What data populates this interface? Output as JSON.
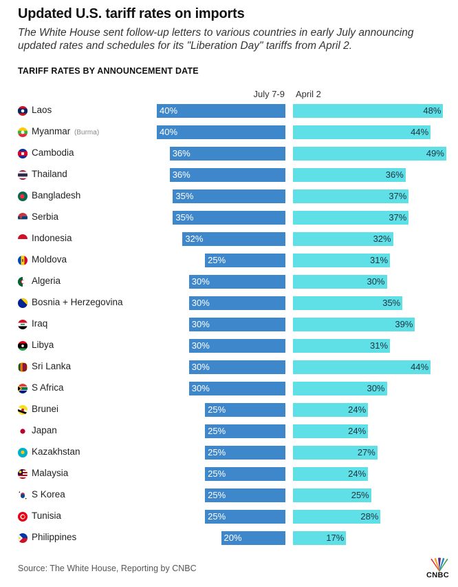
{
  "header": {
    "title": "Updated U.S. tariff rates on imports",
    "subtitle": "The White House sent follow-up letters to various countries in early July announcing updated rates and schedules for its \"Liberation Day\" tariffs from April 2.",
    "section": "TARIFF RATES BY ANNOUNCEMENT DATE"
  },
  "colors": {
    "july": "#3f87cb",
    "april": "#5fdfe6"
  },
  "chart_data": {
    "type": "bar",
    "title": "TARIFF RATES BY ANNOUNCEMENT DATE",
    "series": [
      {
        "name": "July 7-9",
        "values": [
          40,
          40,
          36,
          36,
          35,
          35,
          32,
          25,
          30,
          30,
          30,
          30,
          30,
          30,
          25,
          25,
          25,
          25,
          25,
          25,
          20
        ]
      },
      {
        "name": "April 2",
        "values": [
          48,
          44,
          49,
          36,
          37,
          37,
          32,
          31,
          30,
          35,
          39,
          31,
          44,
          30,
          24,
          24,
          27,
          24,
          25,
          28,
          17
        ]
      }
    ],
    "categories": [
      "Laos",
      "Myanmar",
      "Cambodia",
      "Thailand",
      "Bangladesh",
      "Serbia",
      "Indonesia",
      "Moldova",
      "Algeria",
      "Bosnia + Herzegovina",
      "Iraq",
      "Libya",
      "Sri Lanka",
      "S Africa",
      "Brunei",
      "Japan",
      "Kazakhstan",
      "Malaysia",
      "S Korea",
      "Tunisia",
      "Philippines"
    ],
    "category_notes": {
      "Myanmar": "(Burma)"
    },
    "value_suffix": "%",
    "flags": [
      "laos",
      "myanmar",
      "cambodia",
      "thailand",
      "bangladesh",
      "serbia",
      "indonesia",
      "moldova",
      "algeria",
      "bosnia",
      "iraq",
      "libya",
      "sri-lanka",
      "south-africa",
      "brunei",
      "japan",
      "kazakhstan",
      "malaysia",
      "south-korea",
      "tunisia",
      "philippines"
    ]
  },
  "footer": {
    "source": "Source: The White House, Reporting by CNBC",
    "logo": "CNBC"
  }
}
